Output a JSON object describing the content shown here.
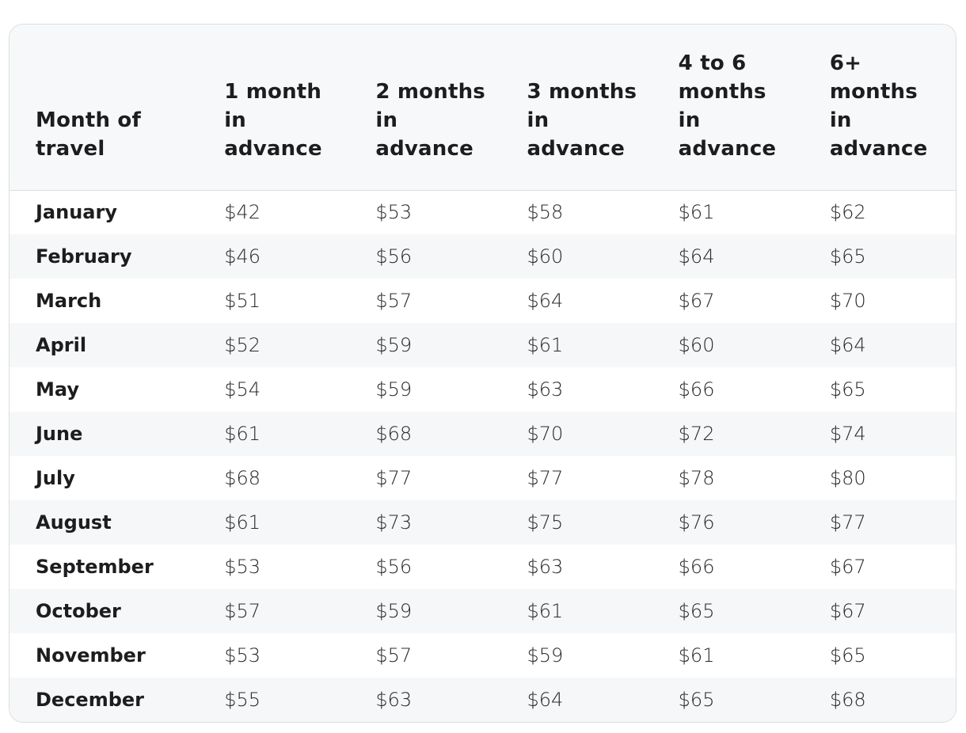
{
  "table": {
    "headers": [
      "Month of travel",
      "1 month in advance",
      "2 months in advance",
      "3 months in advance",
      "4 to 6 months in advance",
      "6+ months in advance"
    ],
    "rows": [
      {
        "month": "January",
        "prices": [
          "$42",
          "$53",
          "$58",
          "$61",
          "$62"
        ]
      },
      {
        "month": "February",
        "prices": [
          "$46",
          "$56",
          "$60",
          "$64",
          "$65"
        ]
      },
      {
        "month": "March",
        "prices": [
          "$51",
          "$57",
          "$64",
          "$67",
          "$70"
        ]
      },
      {
        "month": "April",
        "prices": [
          "$52",
          "$59",
          "$61",
          "$60",
          "$64"
        ]
      },
      {
        "month": "May",
        "prices": [
          "$54",
          "$59",
          "$63",
          "$66",
          "$65"
        ]
      },
      {
        "month": "June",
        "prices": [
          "$61",
          "$68",
          "$70",
          "$72",
          "$74"
        ]
      },
      {
        "month": "July",
        "prices": [
          "$68",
          "$77",
          "$77",
          "$78",
          "$80"
        ]
      },
      {
        "month": "August",
        "prices": [
          "$61",
          "$73",
          "$75",
          "$76",
          "$77"
        ]
      },
      {
        "month": "September",
        "prices": [
          "$53",
          "$56",
          "$63",
          "$66",
          "$67"
        ]
      },
      {
        "month": "October",
        "prices": [
          "$57",
          "$59",
          "$61",
          "$65",
          "$67"
        ]
      },
      {
        "month": "November",
        "prices": [
          "$53",
          "$57",
          "$59",
          "$61",
          "$65"
        ]
      },
      {
        "month": "December",
        "prices": [
          "$55",
          "$63",
          "$64",
          "$65",
          "$68"
        ]
      }
    ]
  }
}
